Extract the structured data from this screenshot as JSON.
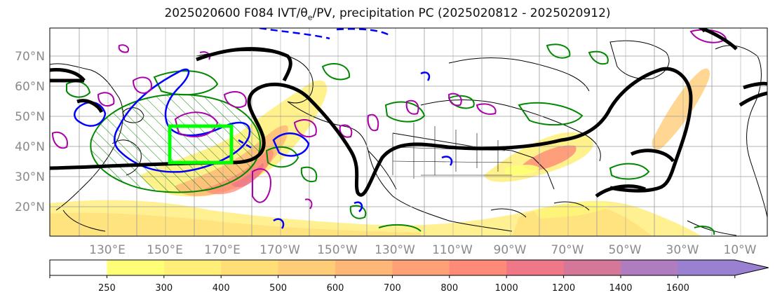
{
  "title": "2025020600 F084 IVT/θe/PV, precipitation PC (2025020812 - 2025020912)",
  "lat_labels": [
    "70°N",
    "60°N",
    "50°N",
    "40°N",
    "30°N",
    "20°N"
  ],
  "lon_labels": [
    "130°E",
    "150°E",
    "170°E",
    "170°W",
    "150°W",
    "130°W",
    "110°W",
    "90°W",
    "70°W",
    "50°W",
    "30°W",
    "10°W"
  ],
  "colorbar": {
    "levels": [
      "250",
      "300",
      "400",
      "500",
      "600",
      "700",
      "800",
      "1000",
      "1200",
      "1400",
      "1600"
    ],
    "colors": [
      "#ffffff",
      "#ffff77",
      "#ffee77",
      "#ffdd77",
      "#ffcc77",
      "#ffb777",
      "#ffa077",
      "#ff8a77",
      "#ee7788",
      "#d57799",
      "#b07cc0",
      "#9a80d0"
    ],
    "extend": "max"
  },
  "legend_colors": {
    "jet": "#000000",
    "theta_e": "#0000ff",
    "pv": "#aa00aa",
    "precip": "#008800",
    "box": "#00ff00"
  }
}
